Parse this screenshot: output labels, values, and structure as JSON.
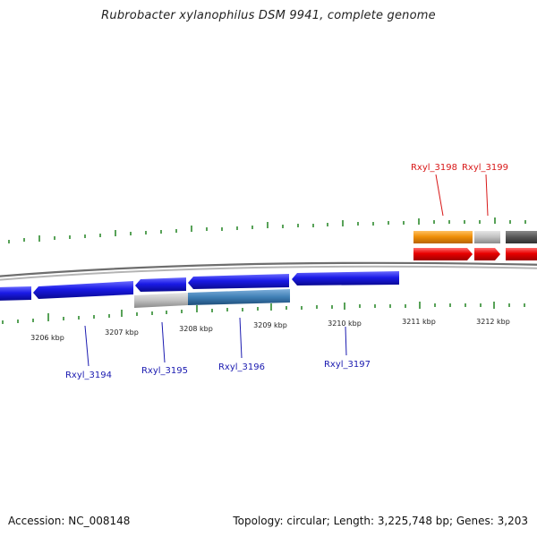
{
  "title": "Rubrobacter xylanophilus DSM 9941, complete genome",
  "footer": {
    "accession": "Accession: NC_008148",
    "topology": "Topology: circular; Length: 3,225,748 bp; Genes: 3,203"
  },
  "colors": {
    "backbone": "#8c8c8c",
    "tick": "#2e8b2e",
    "forward_red": "#e80000",
    "forward_orange": "#f0900a",
    "reverse_blue": "#1a1ae6",
    "steel_blue": "#3f7fb5",
    "pseudo_gray": "#c0c0c0",
    "dark_gray": "#555555",
    "label_blue": "#1a1ab0",
    "label_red": "#d81818"
  },
  "scale_labels": [
    "3206 kbp",
    "3207 kbp",
    "3208 kbp",
    "3209 kbp",
    "3210 kbp",
    "3211 kbp",
    "3212 kbp"
  ],
  "gene_labels": [
    {
      "text": "Rxyl_3194",
      "strand": "reverse"
    },
    {
      "text": "Rxyl_3195",
      "strand": "reverse"
    },
    {
      "text": "Rxyl_3196",
      "strand": "reverse"
    },
    {
      "text": "Rxyl_3197",
      "strand": "reverse"
    },
    {
      "text": "Rxyl_3198",
      "strand": "forward"
    },
    {
      "text": "Rxyl_3199",
      "strand": "forward"
    }
  ]
}
